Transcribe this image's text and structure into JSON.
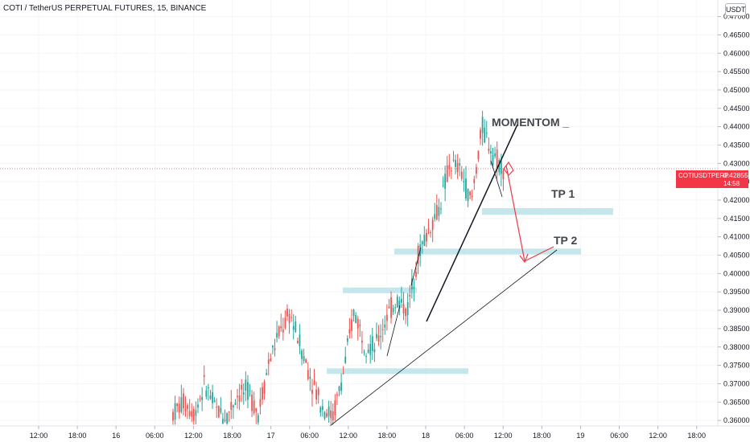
{
  "header": {
    "title": "COTI / TetherUS PERPETUAL FUTURES, 15, BINANCE",
    "currency": "USDT"
  },
  "price_tag": {
    "symbol": "COTIUSDTPERP",
    "price": "0.42855",
    "countdown": "14:58",
    "color": "#f23645"
  },
  "annotations": {
    "momentum": "MOMENTOM _",
    "tp1": "TP 1",
    "tp2": "TP 2"
  },
  "chart_data": {
    "type": "candlestick",
    "y_axis": {
      "ylim": [
        0.3585,
        0.4745
      ],
      "ticks": [
        "0.47000",
        "0.46500",
        "0.46000",
        "0.45500",
        "0.45000",
        "0.44500",
        "0.44000",
        "0.43500",
        "0.43000",
        "0.42500",
        "0.42000",
        "0.41500",
        "0.41000",
        "0.40500",
        "0.40000",
        "0.39500",
        "0.39000",
        "0.38500",
        "0.38000",
        "0.37500",
        "0.37000",
        "0.36500",
        "0.36000"
      ],
      "position": "right"
    },
    "x_axis": {
      "ticks": [
        "12:00",
        "18:00",
        "16",
        "06:00",
        "12:00",
        "18:00",
        "17",
        "06:00",
        "12:00",
        "18:00",
        "18",
        "06:00",
        "12:00",
        "18:00",
        "19",
        "06:00",
        "12:00",
        "18:00"
      ]
    },
    "last_price": 0.42855,
    "colors": {
      "up": "#26a69a",
      "down": "#ef5350",
      "zone": "#b2dfe5",
      "arrow": "#f23645"
    },
    "candles_ohlc_sampled": [
      [
        0.36,
        0.364,
        0.3585,
        0.362
      ],
      [
        0.362,
        0.369,
        0.36,
        0.365
      ],
      [
        0.365,
        0.366,
        0.36,
        0.362
      ],
      [
        0.362,
        0.375,
        0.361,
        0.37
      ],
      [
        0.37,
        0.376,
        0.36,
        0.363
      ],
      [
        0.363,
        0.367,
        0.359,
        0.361
      ],
      [
        0.361,
        0.369,
        0.36,
        0.367
      ],
      [
        0.367,
        0.376,
        0.365,
        0.368
      ],
      [
        0.368,
        0.37,
        0.3595,
        0.362
      ],
      [
        0.362,
        0.38,
        0.361,
        0.376
      ],
      [
        0.376,
        0.386,
        0.374,
        0.384
      ],
      [
        0.384,
        0.391,
        0.38,
        0.389
      ],
      [
        0.389,
        0.39,
        0.378,
        0.38
      ],
      [
        0.38,
        0.382,
        0.369,
        0.371
      ],
      [
        0.371,
        0.372,
        0.362,
        0.364
      ],
      [
        0.364,
        0.366,
        0.359,
        0.361
      ],
      [
        0.361,
        0.376,
        0.36,
        0.373
      ],
      [
        0.373,
        0.396,
        0.372,
        0.39
      ],
      [
        0.39,
        0.392,
        0.378,
        0.381
      ],
      [
        0.381,
        0.387,
        0.376,
        0.38
      ],
      [
        0.38,
        0.391,
        0.379,
        0.388
      ],
      [
        0.388,
        0.396,
        0.387,
        0.393
      ],
      [
        0.393,
        0.396,
        0.386,
        0.39
      ],
      [
        0.39,
        0.408,
        0.389,
        0.405
      ],
      [
        0.405,
        0.415,
        0.403,
        0.412
      ],
      [
        0.412,
        0.42,
        0.41,
        0.418
      ],
      [
        0.418,
        0.433,
        0.416,
        0.43
      ],
      [
        0.43,
        0.436,
        0.425,
        0.428
      ],
      [
        0.428,
        0.429,
        0.416,
        0.419
      ],
      [
        0.419,
        0.445,
        0.418,
        0.44
      ],
      [
        0.44,
        0.442,
        0.431,
        0.433
      ],
      [
        0.433,
        0.44,
        0.428,
        0.4286
      ]
    ],
    "zones": [
      {
        "label": "TP 1",
        "price_top": 0.4178,
        "price_bottom": 0.416
      },
      {
        "label": "TP 2",
        "price_top": 0.4068,
        "price_bottom": 0.4052
      },
      {
        "label": "",
        "price_top": 0.3962,
        "price_bottom": 0.3947
      },
      {
        "label": "",
        "price_top": 0.3742,
        "price_bottom": 0.373
      }
    ]
  }
}
